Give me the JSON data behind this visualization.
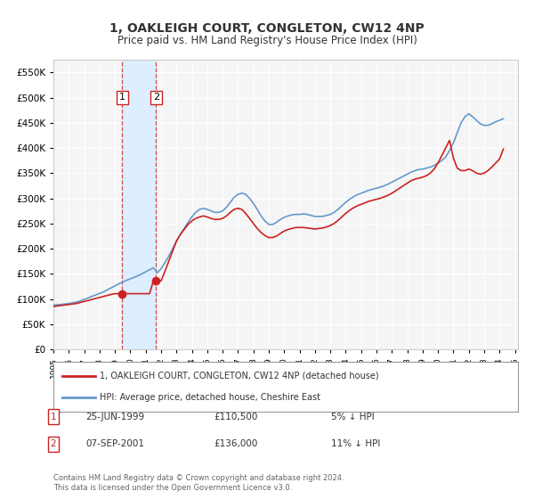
{
  "title": "1, OAKLEIGH COURT, CONGLETON, CW12 4NP",
  "subtitle": "Price paid vs. HM Land Registry's House Price Index (HPI)",
  "xlabel": "",
  "ylabel": "",
  "ylim": [
    0,
    575000
  ],
  "xlim_start": 1995.0,
  "xlim_end": 2025.2,
  "background_color": "#ffffff",
  "plot_bg_color": "#f5f5f5",
  "grid_color": "#ffffff",
  "hpi_color": "#6699cc",
  "price_color": "#cc2222",
  "transaction_marker_color": "#cc2222",
  "shaded_region_color": "#ddeeff",
  "legend_label_price": "1, OAKLEIGH COURT, CONGLETON, CW12 4NP (detached house)",
  "legend_label_hpi": "HPI: Average price, detached house, Cheshire East",
  "transactions": [
    {
      "num": 1,
      "date_str": "25-JUN-1999",
      "date_x": 1999.48,
      "price": 110500,
      "pct": "5%",
      "direction": "↓"
    },
    {
      "num": 2,
      "date_str": "07-SEP-2001",
      "date_x": 2001.68,
      "price": 136000,
      "pct": "11%",
      "direction": "↓"
    }
  ],
  "footnote1": "Contains HM Land Registry data © Crown copyright and database right 2024.",
  "footnote2": "This data is licensed under the Open Government Licence v3.0.",
  "hpi_data_x": [
    1995.0,
    1995.25,
    1995.5,
    1995.75,
    1996.0,
    1996.25,
    1996.5,
    1996.75,
    1997.0,
    1997.25,
    1997.5,
    1997.75,
    1998.0,
    1998.25,
    1998.5,
    1998.75,
    1999.0,
    1999.25,
    1999.5,
    1999.75,
    2000.0,
    2000.25,
    2000.5,
    2000.75,
    2001.0,
    2001.25,
    2001.5,
    2001.75,
    2002.0,
    2002.25,
    2002.5,
    2002.75,
    2003.0,
    2003.25,
    2003.5,
    2003.75,
    2004.0,
    2004.25,
    2004.5,
    2004.75,
    2005.0,
    2005.25,
    2005.5,
    2005.75,
    2006.0,
    2006.25,
    2006.5,
    2006.75,
    2007.0,
    2007.25,
    2007.5,
    2007.75,
    2008.0,
    2008.25,
    2008.5,
    2008.75,
    2009.0,
    2009.25,
    2009.5,
    2009.75,
    2010.0,
    2010.25,
    2010.5,
    2010.75,
    2011.0,
    2011.25,
    2011.5,
    2011.75,
    2012.0,
    2012.25,
    2012.5,
    2012.75,
    2013.0,
    2013.25,
    2013.5,
    2013.75,
    2014.0,
    2014.25,
    2014.5,
    2014.75,
    2015.0,
    2015.25,
    2015.5,
    2015.75,
    2016.0,
    2016.25,
    2016.5,
    2016.75,
    2017.0,
    2017.25,
    2017.5,
    2017.75,
    2018.0,
    2018.25,
    2018.5,
    2018.75,
    2019.0,
    2019.25,
    2019.5,
    2019.75,
    2020.0,
    2020.25,
    2020.5,
    2020.75,
    2021.0,
    2021.25,
    2021.5,
    2021.75,
    2022.0,
    2022.25,
    2022.5,
    2022.75,
    2023.0,
    2023.25,
    2023.5,
    2023.75,
    2024.0,
    2024.25
  ],
  "hpi_data_y": [
    88000,
    88500,
    89000,
    90000,
    91000,
    92500,
    94000,
    96000,
    99000,
    102000,
    105000,
    108000,
    111000,
    114000,
    118000,
    122000,
    126000,
    130000,
    134000,
    137000,
    140000,
    143000,
    146000,
    150000,
    154000,
    158000,
    162000,
    152000,
    160000,
    172000,
    185000,
    200000,
    215000,
    228000,
    240000,
    252000,
    263000,
    272000,
    278000,
    280000,
    278000,
    275000,
    272000,
    272000,
    275000,
    282000,
    292000,
    302000,
    308000,
    310000,
    308000,
    300000,
    290000,
    278000,
    265000,
    255000,
    248000,
    248000,
    252000,
    258000,
    262000,
    265000,
    267000,
    268000,
    268000,
    269000,
    268000,
    266000,
    264000,
    264000,
    264000,
    266000,
    268000,
    272000,
    278000,
    285000,
    292000,
    298000,
    303000,
    307000,
    310000,
    313000,
    316000,
    318000,
    320000,
    322000,
    325000,
    328000,
    332000,
    336000,
    340000,
    344000,
    348000,
    352000,
    355000,
    357000,
    358000,
    360000,
    362000,
    365000,
    370000,
    375000,
    382000,
    395000,
    410000,
    430000,
    450000,
    462000,
    468000,
    462000,
    455000,
    448000,
    445000,
    445000,
    448000,
    452000,
    455000,
    458000
  ],
  "price_data_x": [
    1995.0,
    1995.25,
    1995.5,
    1995.75,
    1996.0,
    1996.25,
    1996.5,
    1996.75,
    1997.0,
    1997.25,
    1997.5,
    1997.75,
    1998.0,
    1998.25,
    1998.5,
    1998.75,
    1999.0,
    1999.25,
    1999.5,
    1999.75,
    2000.0,
    2000.25,
    2000.5,
    2000.75,
    2001.0,
    2001.25,
    2001.5,
    2001.75,
    2002.0,
    2002.25,
    2002.5,
    2002.75,
    2003.0,
    2003.25,
    2003.5,
    2003.75,
    2004.0,
    2004.25,
    2004.5,
    2004.75,
    2005.0,
    2005.25,
    2005.5,
    2005.75,
    2006.0,
    2006.25,
    2006.5,
    2006.75,
    2007.0,
    2007.25,
    2007.5,
    2007.75,
    2008.0,
    2008.25,
    2008.5,
    2008.75,
    2009.0,
    2009.25,
    2009.5,
    2009.75,
    2010.0,
    2010.25,
    2010.5,
    2010.75,
    2011.0,
    2011.25,
    2011.5,
    2011.75,
    2012.0,
    2012.25,
    2012.5,
    2012.75,
    2013.0,
    2013.25,
    2013.5,
    2013.75,
    2014.0,
    2014.25,
    2014.5,
    2014.75,
    2015.0,
    2015.25,
    2015.5,
    2015.75,
    2016.0,
    2016.25,
    2016.5,
    2016.75,
    2017.0,
    2017.25,
    2017.5,
    2017.75,
    2018.0,
    2018.25,
    2018.5,
    2018.75,
    2019.0,
    2019.25,
    2019.5,
    2019.75,
    2020.0,
    2020.25,
    2020.5,
    2020.75,
    2021.0,
    2021.25,
    2021.5,
    2021.75,
    2022.0,
    2022.25,
    2022.5,
    2022.75,
    2023.0,
    2023.25,
    2023.5,
    2023.75,
    2024.0,
    2024.25
  ],
  "price_data_y": [
    85000,
    86000,
    87000,
    88000,
    89000,
    90000,
    91000,
    93000,
    95000,
    97000,
    99000,
    101000,
    103000,
    105000,
    107000,
    109000,
    110500,
    110500,
    110500,
    110500,
    110500,
    110500,
    110500,
    110500,
    110500,
    110500,
    136000,
    136000,
    136000,
    155000,
    175000,
    195000,
    215000,
    228000,
    238000,
    248000,
    255000,
    260000,
    263000,
    265000,
    263000,
    260000,
    258000,
    258000,
    260000,
    265000,
    272000,
    278000,
    280000,
    278000,
    270000,
    260000,
    250000,
    240000,
    232000,
    226000,
    222000,
    222000,
    225000,
    230000,
    235000,
    238000,
    240000,
    242000,
    242000,
    242000,
    241000,
    240000,
    239000,
    240000,
    241000,
    243000,
    246000,
    250000,
    256000,
    263000,
    270000,
    276000,
    281000,
    285000,
    288000,
    291000,
    294000,
    296000,
    298000,
    300000,
    303000,
    306000,
    310000,
    315000,
    320000,
    325000,
    330000,
    335000,
    338000,
    340000,
    342000,
    345000,
    350000,
    358000,
    370000,
    385000,
    400000,
    415000,
    380000,
    360000,
    355000,
    355000,
    358000,
    355000,
    350000,
    348000,
    350000,
    355000,
    362000,
    370000,
    378000,
    398000
  ]
}
